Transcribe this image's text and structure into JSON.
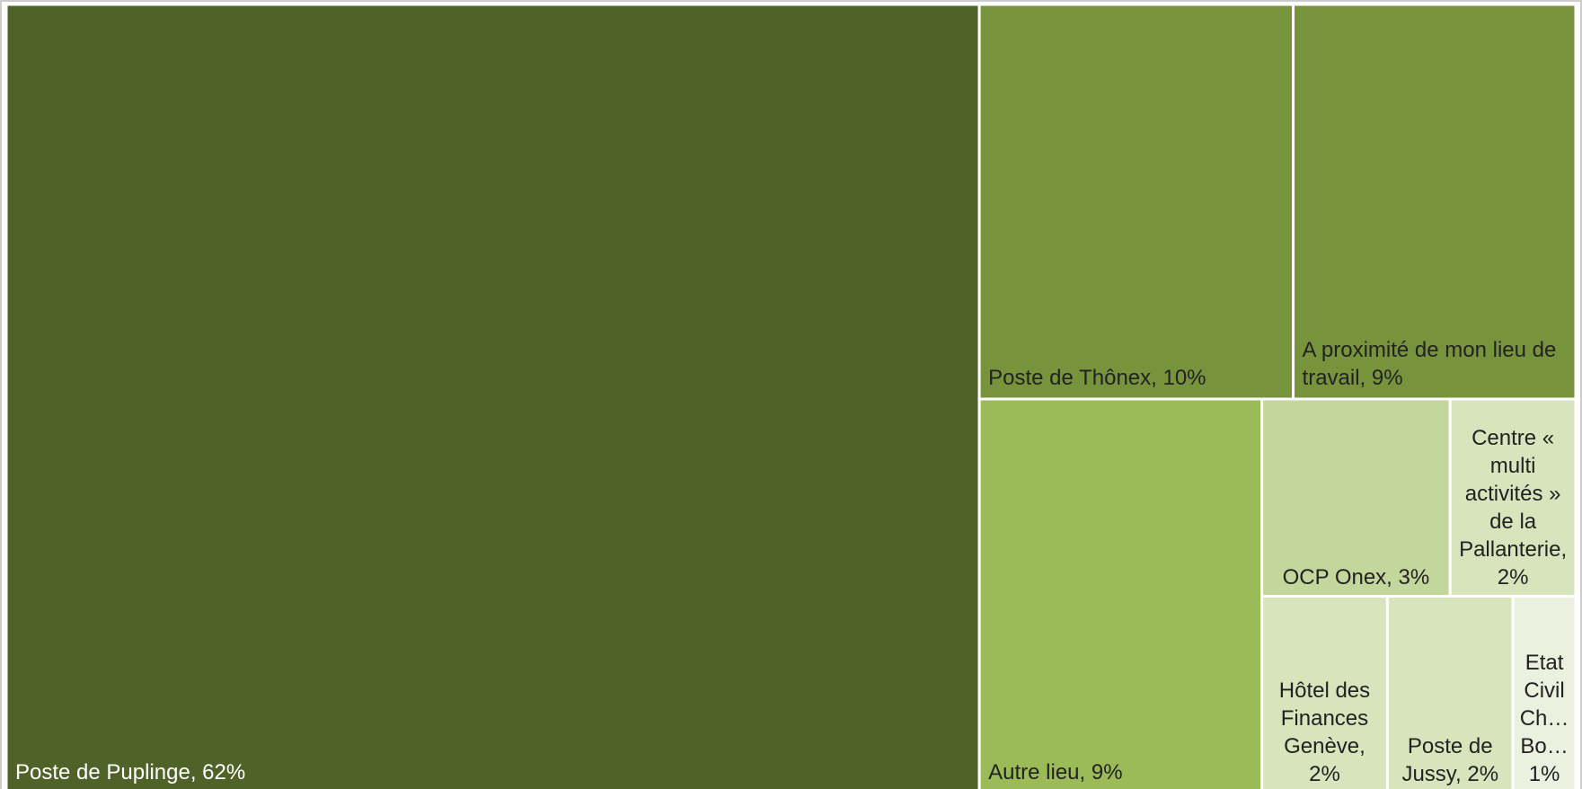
{
  "chart_data": {
    "type": "treemap",
    "values": [
      62,
      10,
      9,
      9,
      3,
      2,
      2,
      2,
      1
    ],
    "value_labels": [
      "Poste de Puplinge, 62%",
      "Poste de Thônex, 10%",
      "A proximité de mon lieu de travail, 9%",
      "Autre lieu, 9%",
      "OCP Onex, 3%",
      "Centre « multi activités » de la Pallanterie, 2%",
      "Hôtel des Finances Genève, 2%",
      "Poste de Jussy, 2%",
      "Etat Civil Ch… Bo… 1%"
    ],
    "colors": [
      "#4f6228",
      "#77933c",
      "#77933c",
      "#9bbb59",
      "#c3d69b",
      "#d7e4bc",
      "#d7e4bc",
      "#d7e4bc",
      "#ebf1de"
    ]
  }
}
